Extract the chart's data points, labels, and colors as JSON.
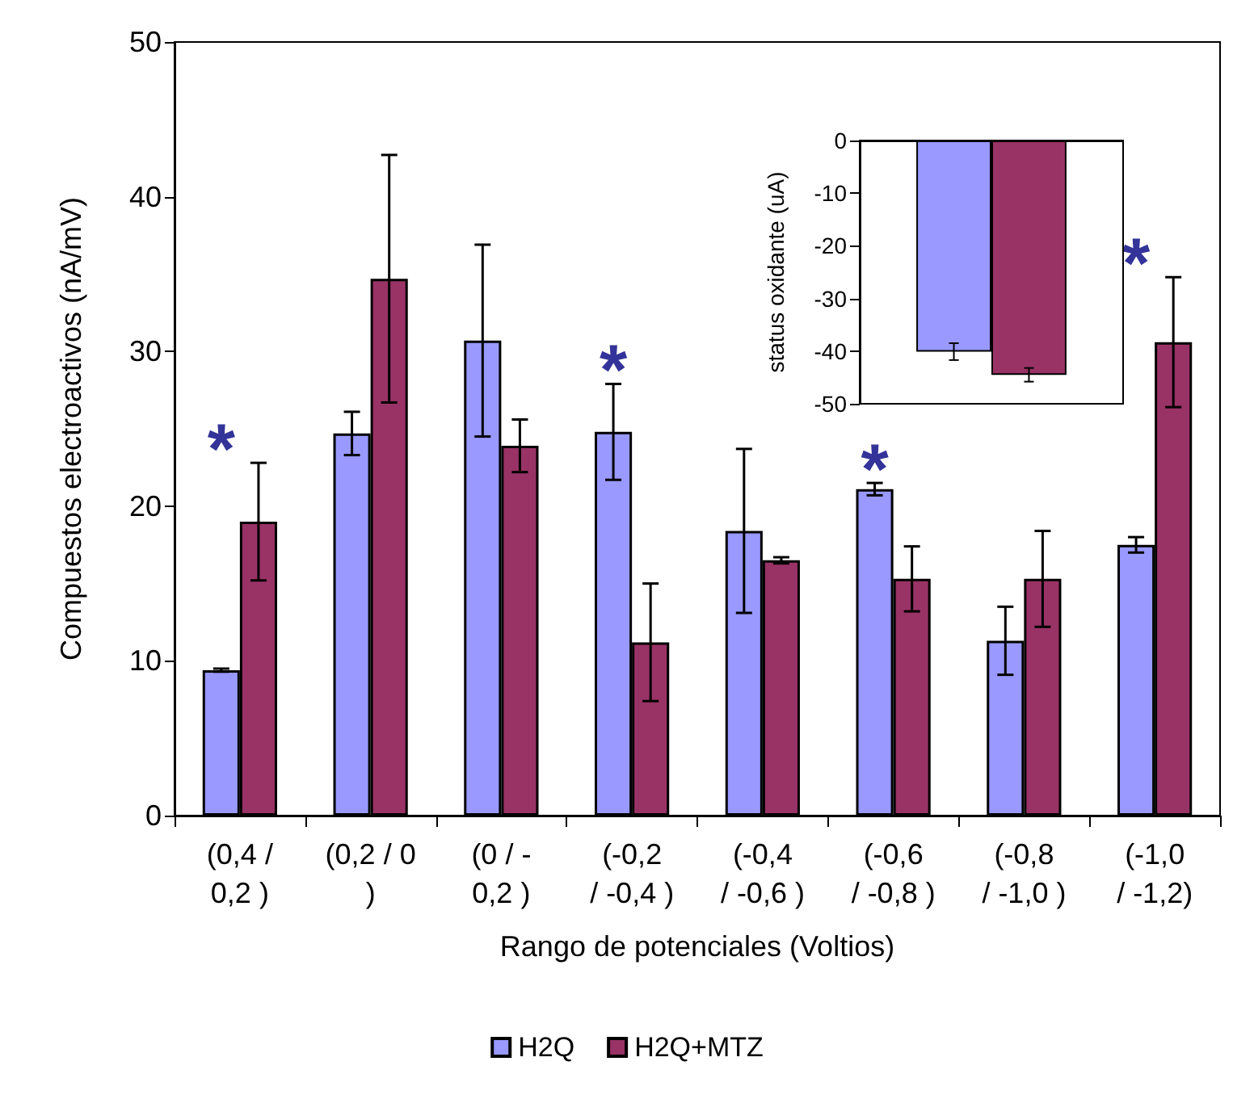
{
  "chart_data": [
    {
      "type": "bar",
      "categories": [
        "(0,4 / 0,2 )",
        "(0,2 / 0 )",
        "(0 / -0,2 )",
        "(-0,2 / -0,4 )",
        "(-0,4 / -0,6 )",
        "(-0,6 / -0,8 )",
        "(-0,8 / -1,0 )",
        "(-1,0 / -1,2)"
      ],
      "xlabel": "Rango de potenciales (Voltios)",
      "ylabel": "Compuestos electroactivos (nA/mV)",
      "series": [
        {
          "name": "H2Q",
          "color": "#9999ff",
          "values": [
            9.4,
            24.7,
            30.7,
            24.8,
            18.4,
            21.1,
            11.3,
            17.5
          ],
          "errors": [
            0.1,
            1.4,
            6.2,
            3.1,
            5.3,
            0.4,
            2.2,
            0.5
          ]
        },
        {
          "name": "H2Q+MTZ",
          "color": "#993366",
          "values": [
            19.0,
            34.7,
            23.9,
            11.2,
            16.5,
            15.3,
            15.3,
            30.6
          ],
          "errors": [
            3.8,
            8.0,
            1.7,
            3.8,
            0.2,
            2.1,
            3.1,
            4.2
          ]
        }
      ],
      "ylim": [
        0,
        50
      ],
      "yticks": [
        0,
        10,
        20,
        30,
        40,
        50
      ],
      "grid": false,
      "legend": "bottom",
      "annotations": [
        {
          "text": "*",
          "x": "(0,4 / 0,2 )",
          "y": 19.0
        },
        {
          "text": "*",
          "x": "(-0,2 / -0,4 )",
          "y": 24.8
        },
        {
          "text": "*",
          "x": "(-0,6 / -0,8 )",
          "y": 21.1
        },
        {
          "text": "*",
          "x": "(-1,0 / -1,2)",
          "y": 30.6
        }
      ]
    },
    {
      "type": "bar",
      "categories": [
        null
      ],
      "ylabel": "status oxidante (uA)",
      "series": [
        {
          "color": "#9999ff",
          "values": [
            -40.1
          ],
          "errors": [
            1.6
          ]
        },
        {
          "color": "#993366",
          "values": [
            -44.5
          ],
          "errors": [
            1.3
          ]
        }
      ],
      "ylim": [
        -50,
        0
      ],
      "yticks": [
        -50,
        -40,
        -30,
        -20,
        -10,
        0
      ],
      "grid": false,
      "legend": false,
      "tick_labels": "y"
    }
  ]
}
